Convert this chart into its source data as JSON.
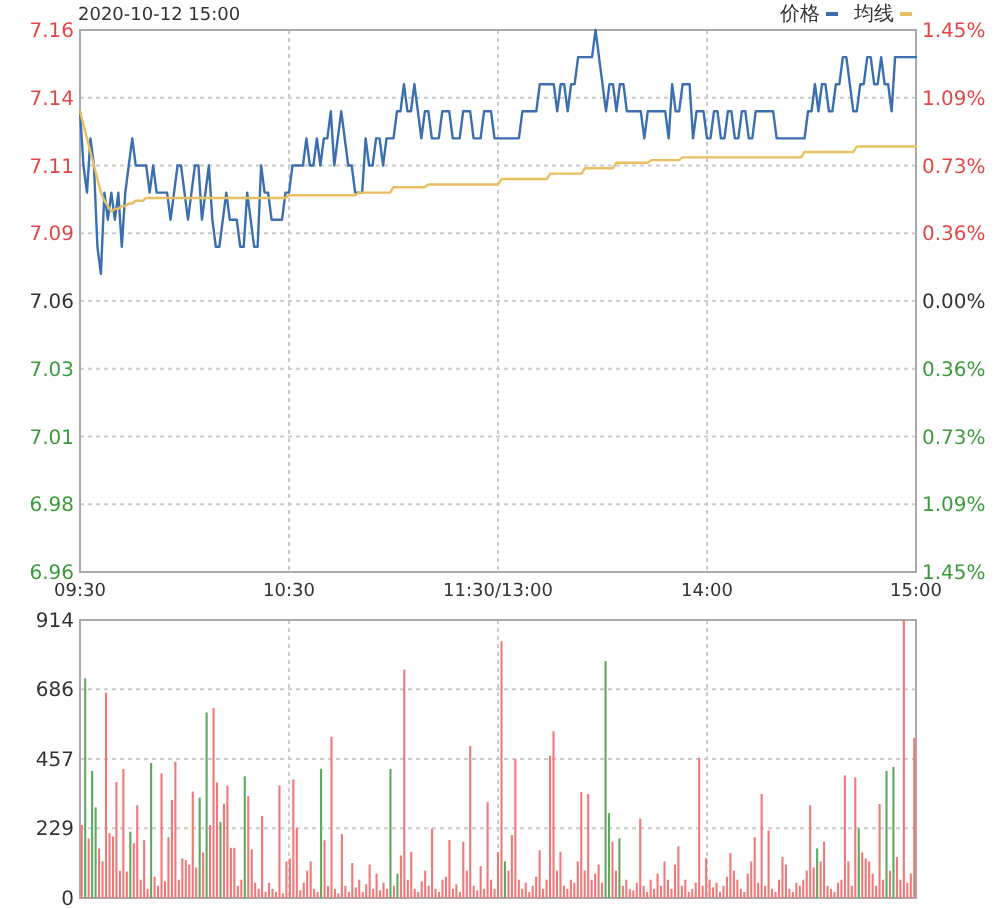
{
  "chart_data": [
    {
      "type": "line",
      "title": "2020-10-12 15:00",
      "categories": [
        "09:30",
        null,
        null,
        null,
        null,
        null,
        null,
        null,
        null,
        null,
        null,
        null,
        null,
        null,
        null,
        null,
        null,
        null,
        null,
        null,
        null,
        null,
        null,
        null,
        null,
        null,
        null,
        null,
        null,
        null,
        null,
        null,
        null,
        null,
        null,
        null,
        null,
        null,
        null,
        null,
        null,
        null,
        null,
        null,
        null,
        null,
        null,
        null,
        null,
        null,
        null,
        null,
        null,
        null,
        null,
        null,
        null,
        null,
        null,
        null,
        "10:30",
        null,
        null,
        null,
        null,
        null,
        null,
        null,
        null,
        null,
        null,
        null,
        null,
        null,
        null,
        null,
        null,
        null,
        null,
        null,
        null,
        null,
        null,
        null,
        null,
        null,
        null,
        null,
        null,
        null,
        null,
        null,
        null,
        null,
        null,
        null,
        null,
        null,
        null,
        null,
        null,
        null,
        null,
        null,
        null,
        null,
        null,
        null,
        null,
        null,
        null,
        null,
        null,
        null,
        null,
        null,
        null,
        null,
        null,
        null,
        "11:30/13:00",
        null,
        null,
        null,
        null,
        null,
        null,
        null,
        null,
        null,
        null,
        null,
        null,
        null,
        null,
        null,
        null,
        null,
        null,
        null,
        null,
        null,
        null,
        null,
        null,
        null,
        null,
        null,
        null,
        null,
        null,
        null,
        null,
        null,
        null,
        null,
        null,
        null,
        null,
        null,
        null,
        null,
        null,
        null,
        null,
        null,
        null,
        null,
        null,
        null,
        null,
        null,
        null,
        null,
        null,
        null,
        null,
        null,
        null,
        null,
        "14:00",
        null,
        null,
        null,
        null,
        null,
        null,
        null,
        null,
        null,
        null,
        null,
        null,
        null,
        null,
        null,
        null,
        null,
        null,
        null,
        null,
        null,
        null,
        null,
        null,
        null,
        null,
        null,
        null,
        null,
        null,
        null,
        null,
        null,
        null,
        null,
        null,
        null,
        null,
        null,
        null,
        null,
        null,
        null,
        null,
        null,
        null,
        null,
        null,
        null,
        null,
        null,
        null,
        null,
        null,
        null,
        null,
        null,
        null,
        null,
        "15:00"
      ],
      "ylim": [
        6.96,
        7.16
      ],
      "yticks": [
        {
          "value": 6.96,
          "label": "6.96"
        },
        {
          "value": 6.985,
          "label": "6.98"
        },
        {
          "value": 7.01,
          "label": "7.01"
        },
        {
          "value": 7.035,
          "label": "7.03"
        },
        {
          "value": 7.06,
          "label": "7.06"
        },
        {
          "value": 7.085,
          "label": "7.09"
        },
        {
          "value": 7.11,
          "label": "7.11"
        },
        {
          "value": 7.135,
          "label": "7.14"
        },
        {
          "value": 7.16,
          "label": "7.16"
        }
      ],
      "y2lim": [
        -1.45,
        1.45
      ],
      "y2ticks": [
        {
          "value": -1.45,
          "label": "1.45%"
        },
        {
          "value": -1.0875,
          "label": "1.09%"
        },
        {
          "value": -0.725,
          "label": "0.73%"
        },
        {
          "value": -0.3625,
          "label": "0.36%"
        },
        {
          "value": 0,
          "label": "0.00%"
        },
        {
          "value": 0.3625,
          "label": "0.36%"
        },
        {
          "value": 0.725,
          "label": "0.73%"
        },
        {
          "value": 1.0875,
          "label": "1.09%"
        },
        {
          "value": 1.45,
          "label": "1.45%"
        }
      ],
      "grid": true,
      "legend": "top right",
      "series": [
        {
          "name": "价格",
          "color": "#3b6fb0",
          "values": [
            7.13,
            7.11,
            7.1,
            7.12,
            7.11,
            7.08,
            7.07,
            7.1,
            7.09,
            7.1,
            7.09,
            7.1,
            7.08,
            7.1,
            7.11,
            7.12,
            7.11,
            7.11,
            7.11,
            7.11,
            7.1,
            7.11,
            7.1,
            7.1,
            7.1,
            7.1,
            7.09,
            7.1,
            7.11,
            7.11,
            7.1,
            7.09,
            7.1,
            7.11,
            7.11,
            7.09,
            7.1,
            7.11,
            7.09,
            7.08,
            7.08,
            7.09,
            7.1,
            7.09,
            7.09,
            7.09,
            7.08,
            7.08,
            7.1,
            7.09,
            7.08,
            7.08,
            7.11,
            7.1,
            7.1,
            7.09,
            7.09,
            7.09,
            7.09,
            7.1,
            7.1,
            7.11,
            7.11,
            7.11,
            7.11,
            7.12,
            7.11,
            7.11,
            7.12,
            7.11,
            7.12,
            7.12,
            7.13,
            7.11,
            7.12,
            7.13,
            7.12,
            7.11,
            7.11,
            7.1,
            7.1,
            7.1,
            7.12,
            7.11,
            7.11,
            7.12,
            7.12,
            7.11,
            7.12,
            7.12,
            7.12,
            7.13,
            7.13,
            7.14,
            7.13,
            7.13,
            7.14,
            7.13,
            7.12,
            7.13,
            7.13,
            7.12,
            7.12,
            7.12,
            7.13,
            7.13,
            7.13,
            7.12,
            7.12,
            7.12,
            7.13,
            7.13,
            7.13,
            7.12,
            7.12,
            7.12,
            7.13,
            7.13,
            7.13,
            7.12,
            7.12,
            7.12,
            7.12,
            7.12,
            7.12,
            7.12,
            7.12,
            7.13,
            7.13,
            7.13,
            7.13,
            7.13,
            7.14,
            7.14,
            7.14,
            7.14,
            7.14,
            7.13,
            7.14,
            7.14,
            7.13,
            7.14,
            7.14,
            7.15,
            7.15,
            7.15,
            7.15,
            7.15,
            7.16,
            7.15,
            7.14,
            7.13,
            7.14,
            7.14,
            7.13,
            7.14,
            7.14,
            7.13,
            7.13,
            7.13,
            7.13,
            7.13,
            7.12,
            7.13,
            7.13,
            7.13,
            7.13,
            7.13,
            7.13,
            7.12,
            7.14,
            7.13,
            7.13,
            7.14,
            7.14,
            7.14,
            7.12,
            7.13,
            7.13,
            7.13,
            7.12,
            7.12,
            7.13,
            7.13,
            7.12,
            7.12,
            7.13,
            7.13,
            7.12,
            7.12,
            7.13,
            7.13,
            7.12,
            7.12,
            7.13,
            7.13,
            7.13,
            7.13,
            7.13,
            7.13,
            7.12,
            7.12,
            7.12,
            7.12,
            7.12,
            7.12,
            7.12,
            7.12,
            7.12,
            7.13,
            7.13,
            7.14,
            7.13,
            7.14,
            7.14,
            7.13,
            7.13,
            7.14,
            7.14,
            7.15,
            7.15,
            7.14,
            7.13,
            7.13,
            7.14,
            7.14,
            7.15,
            7.15,
            7.14,
            7.14,
            7.15,
            7.14,
            7.14,
            7.13,
            7.15,
            7.15,
            7.15,
            7.15,
            7.15,
            7.15,
            7.15
          ]
        },
        {
          "name": "均线",
          "color": "#e8c060",
          "values": [
            7.13,
            7.125,
            7.12,
            7.115,
            7.11,
            7.105,
            7.1,
            7.097,
            7.095,
            7.093,
            7.094,
            7.094,
            7.095,
            7.095,
            7.096,
            7.096,
            7.097,
            7.097,
            7.097,
            7.098,
            7.098,
            7.098,
            7.098,
            7.098,
            7.098,
            7.098,
            7.098,
            7.098,
            7.098,
            7.098,
            7.098,
            7.098,
            7.098,
            7.098,
            7.098,
            7.098,
            7.098,
            7.098,
            7.098,
            7.098,
            7.098,
            7.098,
            7.098,
            7.098,
            7.098,
            7.098,
            7.098,
            7.098,
            7.098,
            7.098,
            7.098,
            7.098,
            7.098,
            7.098,
            7.098,
            7.098,
            7.098,
            7.098,
            7.098,
            7.098,
            7.099,
            7.099,
            7.099,
            7.099,
            7.099,
            7.099,
            7.099,
            7.099,
            7.099,
            7.099,
            7.099,
            7.099,
            7.099,
            7.099,
            7.099,
            7.099,
            7.099,
            7.099,
            7.099,
            7.099,
            7.1,
            7.1,
            7.1,
            7.1,
            7.1,
            7.1,
            7.1,
            7.1,
            7.1,
            7.1,
            7.102,
            7.102,
            7.102,
            7.102,
            7.102,
            7.102,
            7.102,
            7.102,
            7.102,
            7.102,
            7.103,
            7.103,
            7.103,
            7.103,
            7.103,
            7.103,
            7.103,
            7.103,
            7.103,
            7.103,
            7.103,
            7.103,
            7.103,
            7.103,
            7.103,
            7.103,
            7.103,
            7.103,
            7.103,
            7.103,
            7.103,
            7.105,
            7.105,
            7.105,
            7.105,
            7.105,
            7.105,
            7.105,
            7.105,
            7.105,
            7.105,
            7.105,
            7.105,
            7.105,
            7.105,
            7.107,
            7.107,
            7.107,
            7.107,
            7.107,
            7.107,
            7.107,
            7.107,
            7.107,
            7.107,
            7.109,
            7.109,
            7.109,
            7.109,
            7.109,
            7.109,
            7.109,
            7.109,
            7.109,
            7.111,
            7.111,
            7.111,
            7.111,
            7.111,
            7.111,
            7.111,
            7.111,
            7.111,
            7.111,
            7.112,
            7.112,
            7.112,
            7.112,
            7.112,
            7.112,
            7.112,
            7.112,
            7.112,
            7.113,
            7.113,
            7.113,
            7.113,
            7.113,
            7.113,
            7.113,
            7.113,
            7.113,
            7.113,
            7.113,
            7.113,
            7.113,
            7.113,
            7.113,
            7.113,
            7.113,
            7.113,
            7.113,
            7.113,
            7.113,
            7.113,
            7.113,
            7.113,
            7.113,
            7.113,
            7.113,
            7.113,
            7.113,
            7.113,
            7.113,
            7.113,
            7.113,
            7.113,
            7.113,
            7.115,
            7.115,
            7.115,
            7.115,
            7.115,
            7.115,
            7.115,
            7.115,
            7.115,
            7.115,
            7.115,
            7.115,
            7.115,
            7.115,
            7.115,
            7.117,
            7.117,
            7.117,
            7.117,
            7.117,
            7.117,
            7.117,
            7.117,
            7.117,
            7.117,
            7.117,
            7.117,
            7.117,
            7.117,
            7.117,
            7.117,
            7.117,
            7.117
          ]
        }
      ]
    },
    {
      "type": "bar",
      "ylim": [
        0,
        914
      ],
      "yticks": [
        0,
        229,
        457,
        686,
        914
      ],
      "grid": true,
      "tick_labels": "y",
      "categories": [
        null,
        null,
        null,
        null,
        null,
        null,
        null,
        null,
        null,
        null,
        null,
        null,
        null,
        null,
        null,
        null,
        null,
        null,
        null,
        null,
        null,
        null,
        null,
        null,
        null,
        null,
        null,
        null,
        null,
        null,
        null,
        null,
        null,
        null,
        null,
        null,
        null,
        null,
        null,
        null,
        null,
        null,
        null,
        null,
        null,
        null,
        null,
        null,
        null,
        null,
        null,
        null,
        null,
        null,
        null,
        null,
        null,
        null,
        null,
        null,
        null,
        null,
        null,
        null,
        null,
        null,
        null,
        null,
        null,
        null,
        null,
        null,
        null,
        null,
        null,
        null,
        null,
        null,
        null,
        null,
        null,
        null,
        null,
        null,
        null,
        null,
        null,
        null,
        null,
        null,
        null,
        null,
        null,
        null,
        null,
        null,
        null,
        null,
        null,
        null,
        null,
        null,
        null,
        null,
        null,
        null,
        null,
        null,
        null,
        null,
        null,
        null,
        null,
        null,
        null,
        null,
        null,
        null,
        null,
        null,
        null,
        null,
        null,
        null,
        null,
        null,
        null,
        null,
        null,
        null,
        null,
        null,
        null,
        null,
        null,
        null,
        null,
        null,
        null,
        null,
        null,
        null,
        null,
        null,
        null,
        null,
        null,
        null,
        null,
        null,
        null,
        null,
        null,
        null,
        null,
        null,
        null,
        null,
        null,
        null,
        null,
        null,
        null,
        null,
        null,
        null,
        null,
        null,
        null,
        null,
        null,
        null,
        null,
        null,
        null,
        null,
        null,
        null,
        null,
        null,
        null,
        null,
        null,
        null,
        null,
        null,
        null,
        null,
        null,
        null,
        null,
        null,
        null,
        null,
        null,
        null,
        null,
        null,
        null,
        null,
        null,
        null,
        null,
        null,
        null,
        null,
        null,
        null,
        null,
        null,
        null,
        null,
        null,
        null,
        null,
        null,
        null,
        null,
        null,
        null,
        null,
        null,
        null,
        null,
        null,
        null,
        null,
        null,
        null,
        null,
        null,
        null,
        null,
        null,
        null,
        null,
        null,
        null,
        null,
        null,
        null
      ],
      "values": [
        240,
        722,
        196,
        418,
        298,
        163,
        120,
        675,
        213,
        202,
        381,
        90,
        424,
        87,
        218,
        180,
        305,
        60,
        190,
        30,
        444,
        70,
        40,
        410,
        55,
        200,
        322,
        448,
        60,
        130,
        125,
        110,
        350,
        100,
        330,
        150,
        610,
        240,
        625,
        380,
        250,
        310,
        370,
        165,
        165,
        40,
        60,
        400,
        335,
        160,
        50,
        30,
        270,
        20,
        50,
        30,
        20,
        370,
        15,
        120,
        130,
        390,
        230,
        25,
        50,
        90,
        120,
        30,
        20,
        425,
        190,
        40,
        530,
        30,
        15,
        210,
        40,
        20,
        115,
        35,
        60,
        20,
        45,
        110,
        30,
        80,
        25,
        50,
        30,
        424,
        40,
        80,
        140,
        751,
        60,
        152,
        30,
        20,
        55,
        90,
        40,
        228,
        30,
        20,
        60,
        70,
        191,
        30,
        45,
        20,
        185,
        90,
        500,
        40,
        25,
        105,
        30,
        315,
        60,
        30,
        150,
        844,
        120,
        90,
        207,
        457,
        60,
        30,
        50,
        20,
        40,
        70,
        157,
        30,
        60,
        468,
        548,
        90,
        152,
        40,
        30,
        60,
        50,
        120,
        348,
        90,
        342,
        60,
        80,
        110,
        50,
        779,
        279,
        185,
        90,
        196,
        40,
        60,
        30,
        25,
        50,
        261,
        40,
        20,
        60,
        30,
        80,
        40,
        120,
        60,
        30,
        110,
        170,
        40,
        60,
        20,
        30,
        50,
        461,
        40,
        131,
        60,
        35,
        50,
        20,
        40,
        70,
        148,
        90,
        60,
        30,
        20,
        80,
        120,
        200,
        50,
        342,
        40,
        222,
        30,
        20,
        60,
        135,
        110,
        30,
        20,
        50,
        40,
        60,
        90,
        305,
        100,
        163,
        120,
        185,
        40,
        30,
        20,
        50,
        60,
        403,
        120,
        40,
        396,
        228,
        150,
        130,
        120,
        80,
        40,
        309,
        60,
        418,
        90,
        431,
        135,
        60,
        914,
        50,
        80,
        527
      ],
      "colors": [
        "#f07878",
        "#5fa85f",
        "#f07878",
        "#5fa85f",
        "#5fa85f",
        "#f07878",
        "#f07878",
        "#f07878",
        "#f07878",
        "#f07878",
        "#f07878",
        "#f07878",
        "#f07878",
        "#f07878",
        "#5fa85f",
        "#f07878",
        "#f07878",
        "#f07878",
        "#f07878",
        "#f07878",
        "#5fa85f",
        "#f07878",
        "#f07878",
        "#f07878",
        "#f07878",
        "#f07878",
        "#f07878",
        "#f07878",
        "#f07878",
        "#f07878",
        "#f07878",
        "#f07878",
        "#f07878",
        "#f07878",
        "#5fa85f",
        "#f07878",
        "#5fa85f",
        "#f07878",
        "#f07878",
        "#f07878",
        "#5fa85f",
        "#f07878",
        "#f07878",
        "#f07878",
        "#f07878",
        "#f07878",
        "#f07878",
        "#5fa85f",
        "#f07878",
        "#f07878",
        "#f07878",
        "#f07878",
        "#f07878",
        "#f07878",
        "#f07878",
        "#f07878",
        "#f07878",
        "#f07878",
        "#f07878",
        "#f07878",
        "#f07878",
        "#f07878",
        "#f07878",
        "#f07878",
        "#f07878",
        "#f07878",
        "#f07878",
        "#f07878",
        "#f07878",
        "#5fa85f",
        "#f07878",
        "#f07878",
        "#f07878",
        "#f07878",
        "#f07878",
        "#f07878",
        "#f07878",
        "#f07878",
        "#f07878",
        "#f07878",
        "#f07878",
        "#f07878",
        "#f07878",
        "#f07878",
        "#f07878",
        "#f07878",
        "#f07878",
        "#f07878",
        "#f07878",
        "#5fa85f",
        "#f07878",
        "#5fa85f",
        "#f07878",
        "#f07878",
        "#f07878",
        "#f07878",
        "#f07878",
        "#f07878",
        "#f07878",
        "#f07878",
        "#f07878",
        "#f07878",
        "#f07878",
        "#f07878",
        "#f07878",
        "#f07878",
        "#f07878",
        "#f07878",
        "#f07878",
        "#f07878",
        "#f07878",
        "#f07878",
        "#f07878",
        "#f07878",
        "#f07878",
        "#f07878",
        "#f07878",
        "#f07878",
        "#f07878",
        "#f07878",
        "#f07878",
        "#f07878",
        "#5fa85f",
        "#f07878",
        "#f07878",
        "#f07878",
        "#f07878",
        "#f07878",
        "#f07878",
        "#f07878",
        "#f07878",
        "#f07878",
        "#f07878",
        "#f07878",
        "#f07878",
        "#f07878",
        "#f07878",
        "#f07878",
        "#f07878",
        "#f07878",
        "#f07878",
        "#f07878",
        "#f07878",
        "#f07878",
        "#f07878",
        "#f07878",
        "#f07878",
        "#f07878",
        "#f07878",
        "#f07878",
        "#f07878",
        "#5fa85f",
        "#5fa85f",
        "#f07878",
        "#f07878",
        "#5fa85f",
        "#f07878",
        "#f07878",
        "#f07878",
        "#f07878",
        "#f07878",
        "#f07878",
        "#f07878",
        "#f07878",
        "#f07878",
        "#f07878",
        "#f07878",
        "#f07878",
        "#f07878",
        "#f07878",
        "#f07878",
        "#f07878",
        "#f07878",
        "#f07878",
        "#f07878",
        "#f07878",
        "#f07878",
        "#f07878",
        "#f07878",
        "#f07878",
        "#f07878",
        "#f07878",
        "#f07878",
        "#f07878",
        "#f07878",
        "#f07878",
        "#f07878",
        "#f07878",
        "#f07878",
        "#f07878",
        "#f07878",
        "#f07878",
        "#f07878",
        "#f07878",
        "#f07878",
        "#f07878",
        "#f07878",
        "#f07878",
        "#f07878",
        "#f07878",
        "#f07878",
        "#f07878",
        "#f07878",
        "#f07878",
        "#f07878",
        "#f07878",
        "#f07878",
        "#f07878",
        "#f07878",
        "#f07878",
        "#f07878",
        "#f07878",
        "#5fa85f",
        "#f07878",
        "#f07878",
        "#f07878",
        "#f07878",
        "#f07878",
        "#f07878",
        "#f07878",
        "#f07878",
        "#f07878",
        "#f07878",
        "#f07878",
        "#5fa85f",
        "#f07878",
        "#f07878",
        "#f07878",
        "#f07878",
        "#f07878",
        "#f07878",
        "#f07878",
        "#5fa85f",
        "#f07878",
        "#5fa85f",
        "#f07878",
        "#f07878",
        "#f07878",
        "#f07878",
        "#f07878",
        "#f07878"
      ]
    }
  ]
}
